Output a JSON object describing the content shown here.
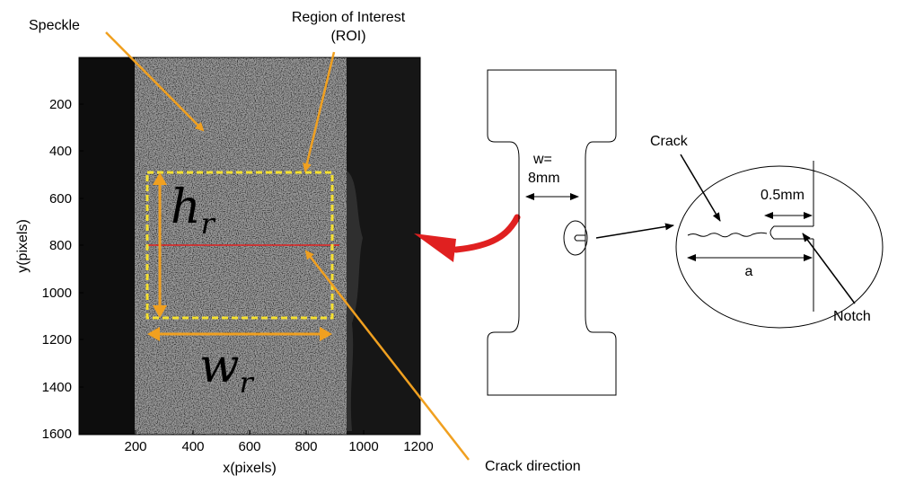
{
  "annotations": {
    "speckle": "Speckle",
    "roi_line1": "Region of Interest",
    "roi_line2": "(ROI)",
    "crack_direction": "Crack direction",
    "h_symbol": "h",
    "h_subscript": "r",
    "w_symbol": "w",
    "w_subscript": "r"
  },
  "axes": {
    "xlabel": "x(pixels)",
    "ylabel": "y(pixels)",
    "x_ticks": [
      "200",
      "400",
      "600",
      "800",
      "1000",
      "1200"
    ],
    "y_ticks": [
      "200",
      "400",
      "600",
      "800",
      "1000",
      "1200",
      "1400",
      "1600"
    ]
  },
  "specimen": {
    "width_line1": "w=",
    "width_line2": "8mm"
  },
  "detail": {
    "crack": "Crack",
    "notch_width": "0.5mm",
    "crack_length": "a",
    "notch": "Notch"
  },
  "colors": {
    "annotation_arrow": "#F0A020",
    "roi_box": "#F5E030",
    "crack_line": "#E02020",
    "big_arrow": "#E02020"
  }
}
